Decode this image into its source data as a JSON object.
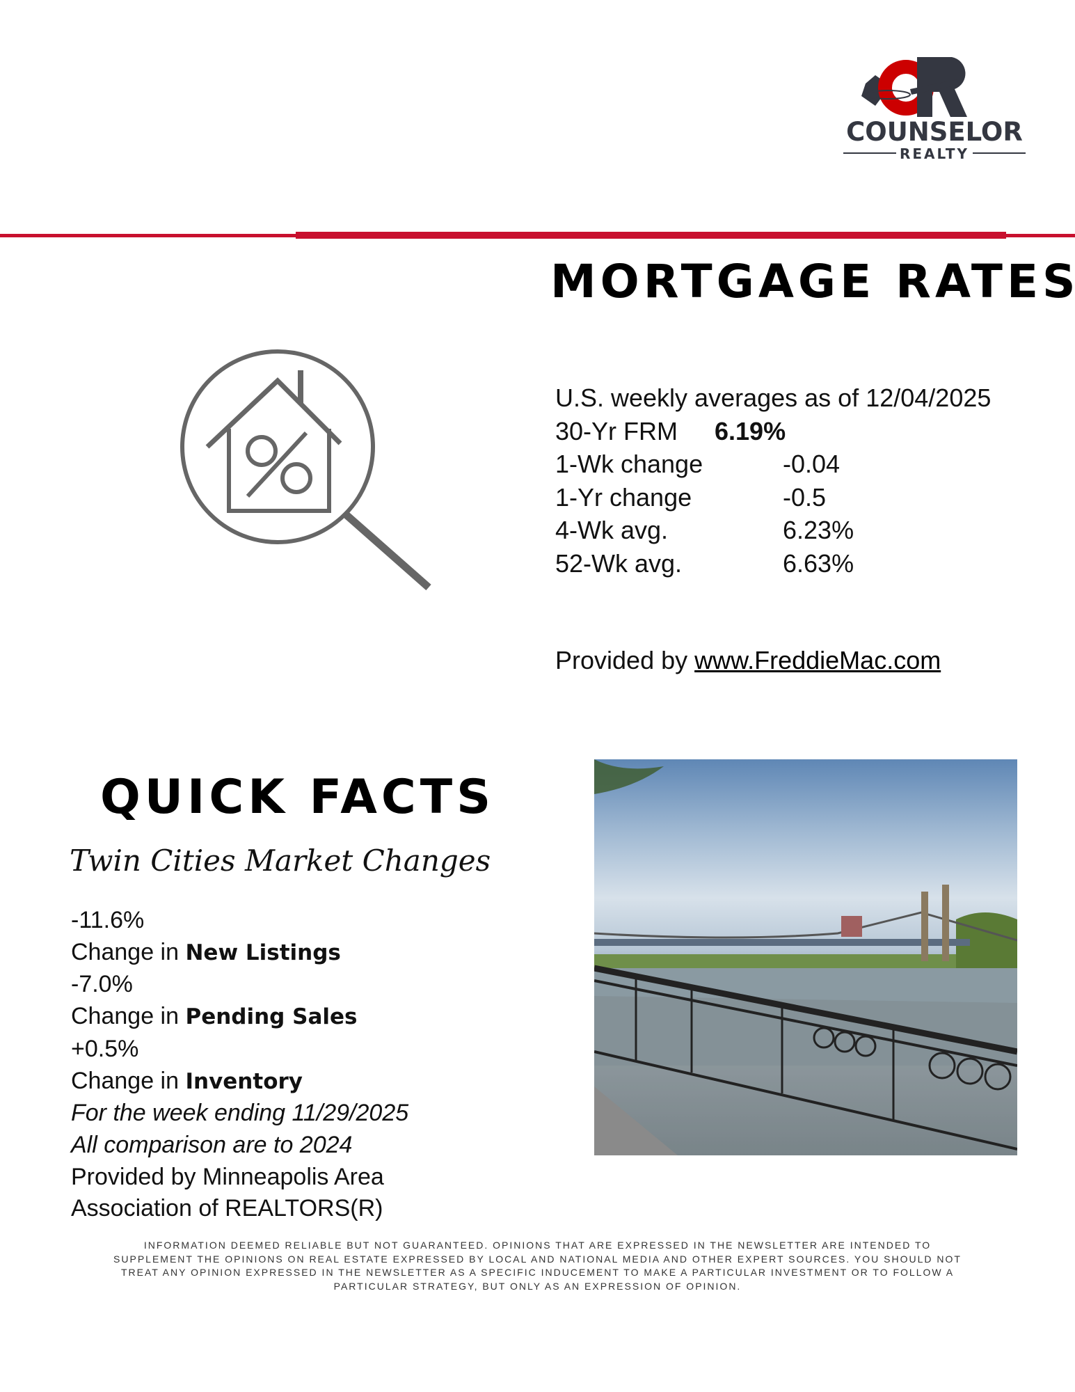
{
  "logo": {
    "monogram": "CR",
    "name": "COUNSELOR",
    "sub": "REALTY",
    "colors": {
      "red": "#cc0000",
      "dark": "#343741"
    }
  },
  "mortgage": {
    "title": "MORTGAGE RATES",
    "icon": "house-percent-magnifier-icon",
    "heading": "U.S. weekly averages as of 12/04/2025",
    "rows": [
      {
        "label": "30-Yr FRM",
        "value": "6.19%"
      },
      {
        "label": "1-Wk change",
        "value": "-0.04"
      },
      {
        "label": "1-Yr change",
        "value": "-0.5"
      },
      {
        "label": "4-Wk avg.",
        "value": "6.23%"
      },
      {
        "label": "52-Wk avg.",
        "value": "6.63%"
      }
    ],
    "provided_prefix": "Provided by ",
    "provided_link": "www.FreddieMac.com"
  },
  "quick_facts": {
    "title": "QUICK FACTS",
    "subtitle": "Twin Cities Market Changes",
    "change_prefix": "Change in ",
    "items": [
      {
        "value": "-11.6%",
        "metric": "New Listings"
      },
      {
        "value": "-7.0%",
        "metric": "Pending Sales"
      },
      {
        "value": "+0.5%",
        "metric": "Inventory"
      }
    ],
    "week": "For the week ending 11/29/2025",
    "comparison": "All comparison are to 2024",
    "source_1": "Provided by Minneapolis Area",
    "source_2": "Association of  REALTORS(R)"
  },
  "disclaimer": "INFORMATION DEEMED RELIABLE BUT NOT GUARANTEED. OPINIONS THAT ARE EXPRESSED IN THE NEWSLETTER ARE INTENDED TO SUPPLEMENT THE OPINIONS ON REAL ESTATE EXPRESSED BY LOCAL AND NATIONAL MEDIA AND OTHER EXPERT SOURCES. YOU SHOULD NOT TREAT ANY OPINION EXPRESSED IN THE NEWSLETTER AS A SPECIFIC INDUCEMENT TO MAKE A PARTICULAR INVESTMENT OR TO FOLLOW A PARTICULAR STRATEGY, BUT ONLY AS AN EXPRESSION OF OPINION.",
  "accent_color": "#c8102e"
}
